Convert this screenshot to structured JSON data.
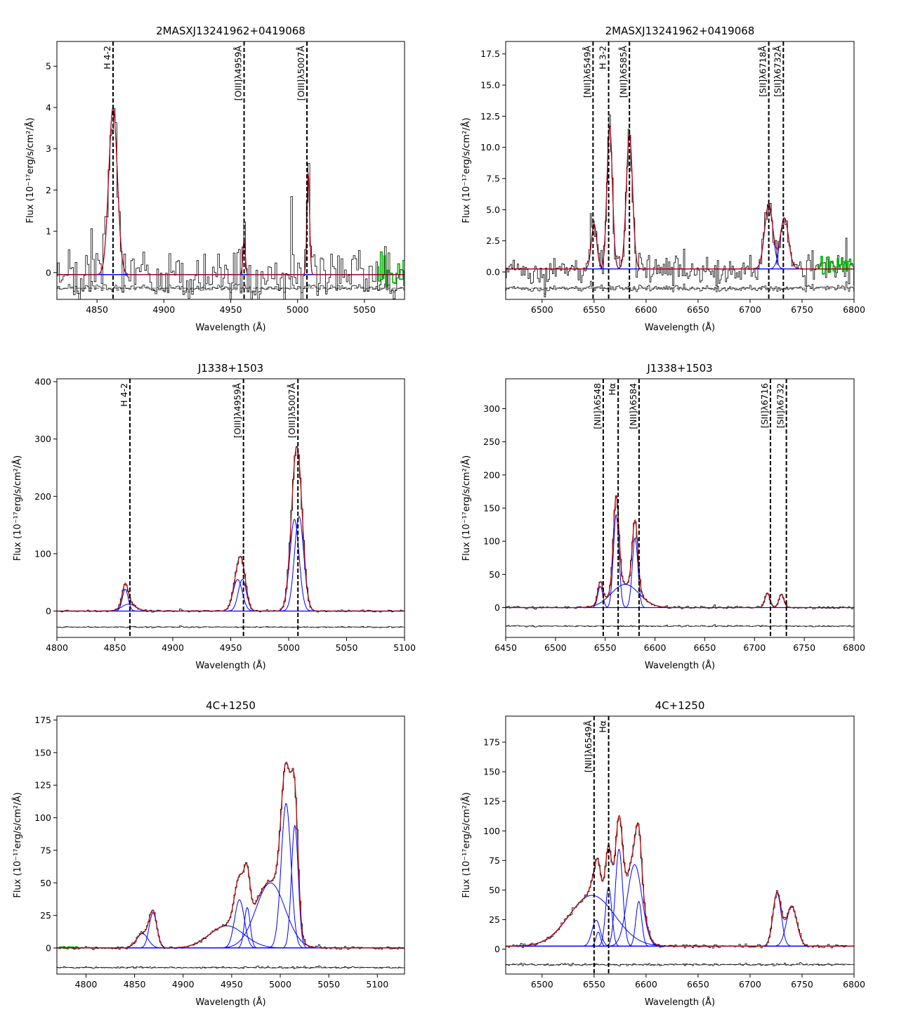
{
  "figure": "Emission line spectral fits",
  "colors": {
    "data": "#000000",
    "total_fit": "#c00000",
    "component": "#0000ff",
    "masked": "#00b000",
    "marker": "#000000",
    "residual": "#000000"
  },
  "chart_data": [
    {
      "id": "p1",
      "type": "line",
      "title": "2MASXJ13241962+0419068",
      "xlabel": "Wavelength (Å)",
      "ylabel": "Flux (10⁻¹⁷erg/s/cm²/Å)",
      "xlim": [
        4820,
        5080
      ],
      "ylim": [
        -0.65,
        5.6
      ],
      "xticks": [
        4850,
        4900,
        4950,
        5000,
        5050
      ],
      "yticks": [
        0,
        1,
        2,
        3,
        4,
        5
      ],
      "baseline": -0.05,
      "residual_level": -0.38,
      "residual_scale": 0.25,
      "noise": 0.5,
      "resolution": 1.3,
      "lines": [
        {
          "x": 4862,
          "label": "H 4-2"
        },
        {
          "x": 4960,
          "label": "[OIII]λ4959Å"
        },
        {
          "x": 5007,
          "label": "[OIII]λ5007Å"
        }
      ],
      "components": [
        {
          "center": 4862,
          "amp": 4.05,
          "sigma": 3.2
        },
        {
          "center": 4960,
          "amp": 0.85,
          "sigma": 0.9
        },
        {
          "center": 5008,
          "amp": 2.45,
          "sigma": 1.0
        }
      ],
      "masked": [
        5060,
        5080
      ]
    },
    {
      "id": "p2",
      "type": "line",
      "title": "2MASXJ13241962+0419068",
      "xlabel": "Wavelength (Å)",
      "ylabel": "Flux (10⁻¹⁷erg/s/cm²/Å)",
      "xlim": [
        6465,
        6800
      ],
      "ylim": [
        -2.2,
        18.5
      ],
      "xticks": [
        6500,
        6550,
        6600,
        6650,
        6700,
        6750,
        6800
      ],
      "yticks": [
        0.0,
        2.5,
        5.0,
        7.5,
        10.0,
        12.5,
        15.0,
        17.5
      ],
      "baseline": 0.25,
      "residual_level": -1.3,
      "residual_scale": 0.35,
      "noise": 0.8,
      "resolution": 1.3,
      "lines": [
        {
          "x": 6549,
          "label": "[NII]λ6549Å"
        },
        {
          "x": 6564,
          "label": "H 3-2"
        },
        {
          "x": 6584,
          "label": "[NII]λ6585Å"
        },
        {
          "x": 6718,
          "label": "[SII]λ6718Å"
        },
        {
          "x": 6732,
          "label": "[SII]λ6732Å"
        }
      ],
      "components": [
        {
          "center": 6550,
          "amp": 3.6,
          "sigma": 2.6
        },
        {
          "center": 6565,
          "amp": 11.5,
          "sigma": 2.6
        },
        {
          "center": 6584,
          "amp": 10.8,
          "sigma": 3.0
        },
        {
          "center": 6718,
          "amp": 5.2,
          "sigma": 4.0
        },
        {
          "center": 6733,
          "amp": 4.1,
          "sigma": 4.0
        }
      ],
      "masked": [
        6765,
        6800
      ]
    },
    {
      "id": "p3",
      "type": "line",
      "title": "J1338+1503",
      "xlabel": "Wavelength (Å)",
      "ylabel": "Flux (10⁻¹⁷erg/s/cm²/Å)",
      "xlim": [
        4800,
        5100
      ],
      "ylim": [
        -46,
        405
      ],
      "xticks": [
        4800,
        4850,
        4900,
        4950,
        5000,
        5050,
        5100
      ],
      "yticks": [
        0,
        100,
        200,
        300,
        400
      ],
      "baseline": 0,
      "residual_level": -28,
      "residual_scale": 1,
      "noise": 1.2,
      "resolution": 1.5,
      "lines": [
        {
          "x": 4863,
          "label": "H 4-2"
        },
        {
          "x": 4961,
          "label": "[OIII]λ4959Å"
        },
        {
          "x": 5008,
          "label": "[OIII]λ5007Å"
        }
      ],
      "components": [
        {
          "center": 4859,
          "amp": 38,
          "sigma": 2.5
        },
        {
          "center": 4862,
          "amp": 12,
          "sigma": 6
        },
        {
          "center": 4956,
          "amp": 55,
          "sigma": 4
        },
        {
          "center": 4960,
          "amp": 55,
          "sigma": 3.5
        },
        {
          "center": 5005,
          "amp": 160,
          "sigma": 4
        },
        {
          "center": 5009,
          "amp": 165,
          "sigma": 4
        }
      ],
      "masked": null
    },
    {
      "id": "p4",
      "type": "line",
      "title": "J1338+1503",
      "xlabel": "Wavelength (Å)",
      "ylabel": "Flux (10⁻¹⁷erg/s/cm²/Å)",
      "xlim": [
        6450,
        6800
      ],
      "ylim": [
        -45,
        345
      ],
      "xticks": [
        6450,
        6500,
        6550,
        6600,
        6650,
        6700,
        6750,
        6800
      ],
      "yticks": [
        0,
        50,
        100,
        150,
        200,
        250,
        300
      ],
      "baseline": 0,
      "residual_level": -28,
      "residual_scale": 1,
      "noise": 1.2,
      "resolution": 1.5,
      "lines": [
        {
          "x": 6548,
          "label": "[NII]λ6548"
        },
        {
          "x": 6563,
          "label": "Hα"
        },
        {
          "x": 6584,
          "label": "[NII]λ6584"
        },
        {
          "x": 6716,
          "label": "[SII]λ6716"
        },
        {
          "x": 6732,
          "label": "[SII]λ6732"
        }
      ],
      "components": [
        {
          "center": 6545,
          "amp": 32,
          "sigma": 2.5
        },
        {
          "center": 6561,
          "amp": 140,
          "sigma": 2.8
        },
        {
          "center": 6570,
          "amp": 35,
          "sigma": 14
        },
        {
          "center": 6580,
          "amp": 105,
          "sigma": 2.8
        },
        {
          "center": 6713,
          "amp": 22,
          "sigma": 2.5
        },
        {
          "center": 6727,
          "amp": 20,
          "sigma": 2.5
        }
      ],
      "masked": null
    },
    {
      "id": "p5",
      "type": "line",
      "title": "4C+1250",
      "xlabel": "Wavelength (Å)",
      "ylabel": "Flux (10⁻¹⁷erg/s/cm²/Å)",
      "xlim": [
        4770,
        5128
      ],
      "ylim": [
        -20,
        178
      ],
      "xticks": [
        4800,
        4850,
        4900,
        4950,
        5000,
        5050,
        5100
      ],
      "yticks": [
        0,
        25,
        50,
        75,
        100,
        125,
        150,
        175
      ],
      "baseline": 0,
      "residual_level": -15,
      "residual_scale": 1,
      "noise": 0.8,
      "resolution": 1.5,
      "lines": [],
      "components": [
        {
          "center": 4858,
          "amp": 11,
          "sigma": 6
        },
        {
          "center": 4869,
          "amp": 27,
          "sigma": 4
        },
        {
          "center": 4945,
          "amp": 17,
          "sigma": 18
        },
        {
          "center": 4958,
          "amp": 37,
          "sigma": 5
        },
        {
          "center": 4966,
          "amp": 31,
          "sigma": 3
        },
        {
          "center": 4990,
          "amp": 50,
          "sigma": 15
        },
        {
          "center": 5006,
          "amp": 111,
          "sigma": 5
        },
        {
          "center": 5015,
          "amp": 94,
          "sigma": 3.5
        }
      ],
      "masked": [
        4772,
        4792
      ]
    },
    {
      "id": "p6",
      "type": "line",
      "title": "4C+1250",
      "xlabel": "Wavelength (Å)",
      "ylabel": "Flux (10⁻¹⁷erg/s/cm²/Å)",
      "xlim": [
        6465,
        6800
      ],
      "ylim": [
        -21,
        197
      ],
      "xticks": [
        6500,
        6550,
        6600,
        6650,
        6700,
        6750,
        6800
      ],
      "yticks": [
        0,
        25,
        50,
        75,
        100,
        125,
        150,
        175
      ],
      "baseline": 2.5,
      "residual_level": -13,
      "residual_scale": 1,
      "noise": 1.0,
      "resolution": 1.5,
      "lines": [
        {
          "x": 6550,
          "label": "[NII]λ6549Å"
        },
        {
          "x": 6564,
          "label": "Hα"
        }
      ],
      "components": [
        {
          "center": 6548,
          "amp": 43,
          "sigma": 22
        },
        {
          "center": 6552,
          "amp": 22,
          "sigma": 4
        },
        {
          "center": 6554,
          "amp": 12,
          "sigma": 2.2
        },
        {
          "center": 6564,
          "amp": 50,
          "sigma": 3
        },
        {
          "center": 6574,
          "amp": 82,
          "sigma": 3.5
        },
        {
          "center": 6589,
          "amp": 69,
          "sigma": 7
        },
        {
          "center": 6593,
          "amp": 38,
          "sigma": 2.8
        },
        {
          "center": 6726,
          "amp": 45,
          "sigma": 4
        },
        {
          "center": 6740,
          "amp": 34,
          "sigma": 5
        }
      ],
      "masked": null
    }
  ]
}
